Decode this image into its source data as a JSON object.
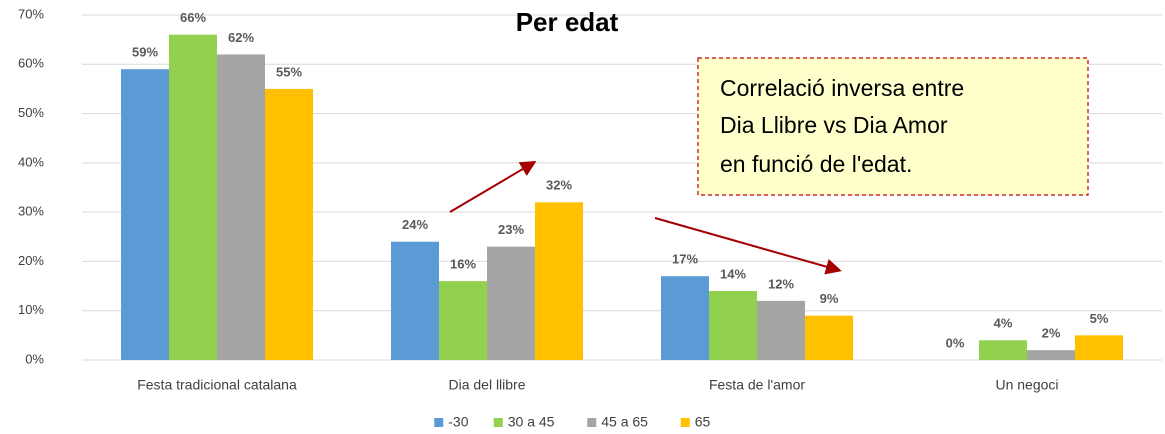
{
  "chart_data": {
    "type": "bar",
    "title": "Per edat",
    "annotation": [
      "Correlació inversa entre",
      "Dia Llibre vs Dia Amor",
      "en funció de l'edat."
    ],
    "categories": [
      "Festa tradicional catalana",
      "Dia del llibre",
      "Festa de l'amor",
      "Un negoci"
    ],
    "series": [
      {
        "name": "-30",
        "color": "#5b9bd5",
        "values": [
          59,
          24,
          17,
          0
        ],
        "value_labels": [
          "59%",
          "24%",
          "17%",
          "0%"
        ]
      },
      {
        "name": "30 a 45",
        "color": "#92d050",
        "values": [
          66,
          16,
          14,
          4
        ],
        "value_labels": [
          "66%",
          "16%",
          "14%",
          "4%"
        ]
      },
      {
        "name": "45 a 65",
        "color": "#a5a5a5",
        "values": [
          62,
          23,
          12,
          2
        ],
        "value_labels": [
          "62%",
          "23%",
          "12%",
          "2%"
        ]
      },
      {
        "name": "65",
        "color": "#ffc000",
        "values": [
          55,
          32,
          9,
          5
        ],
        "value_labels": [
          "55%",
          "32%",
          "9%",
          "5%"
        ]
      }
    ],
    "ylim": [
      0,
      70
    ],
    "yticks": [
      {
        "value": 0,
        "label": "0%"
      },
      {
        "value": 10,
        "label": "10%"
      },
      {
        "value": 20,
        "label": "20%"
      },
      {
        "value": 30,
        "label": "30%"
      },
      {
        "value": 40,
        "label": "40%"
      },
      {
        "value": 50,
        "label": "50%"
      },
      {
        "value": 60,
        "label": "60%"
      },
      {
        "value": 70,
        "label": "70%"
      }
    ],
    "grid": true,
    "legend": "bottom"
  }
}
